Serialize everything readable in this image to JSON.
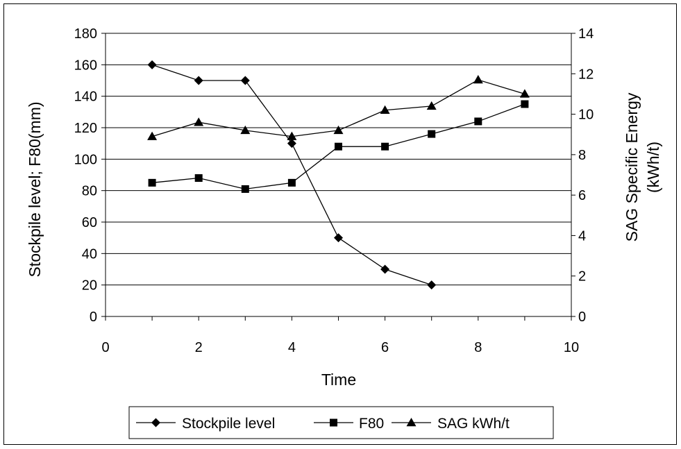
{
  "chart_data": {
    "type": "line",
    "xlabel": "Time",
    "ylabel_left": "Stockpile level; F80(mm)",
    "ylabel_right_line1": "SAG Specific Energy",
    "ylabel_right_line2": "(kWh/t)",
    "xlim": [
      0,
      10
    ],
    "ylim_left": [
      0,
      180
    ],
    "ylim_right": [
      0,
      14
    ],
    "x_ticks": [
      0,
      2,
      4,
      6,
      8,
      10
    ],
    "y_ticks_left": [
      0,
      20,
      40,
      60,
      80,
      100,
      120,
      140,
      160,
      180
    ],
    "y_ticks_right": [
      0,
      2,
      4,
      6,
      8,
      10,
      12,
      14
    ],
    "grid": true,
    "legend_position": "bottom",
    "series": [
      {
        "name": "Stockpile level",
        "axis": "left",
        "marker": "diamond",
        "x": [
          1,
          2,
          3,
          4,
          5,
          6,
          7
        ],
        "values": [
          160,
          150,
          150,
          110,
          50,
          30,
          20
        ]
      },
      {
        "name": "F80",
        "axis": "left",
        "marker": "square",
        "x": [
          1,
          2,
          3,
          4,
          5,
          6,
          7,
          8,
          9
        ],
        "values": [
          85,
          88,
          81,
          85,
          108,
          108,
          116,
          124,
          135
        ]
      },
      {
        "name": "SAG kWh/t",
        "axis": "right",
        "marker": "triangle",
        "x": [
          1,
          2,
          3,
          4,
          5,
          6,
          7,
          8,
          9
        ],
        "values": [
          8.9,
          9.6,
          9.2,
          8.9,
          9.2,
          10.2,
          10.4,
          11.7,
          11.0
        ]
      }
    ]
  }
}
